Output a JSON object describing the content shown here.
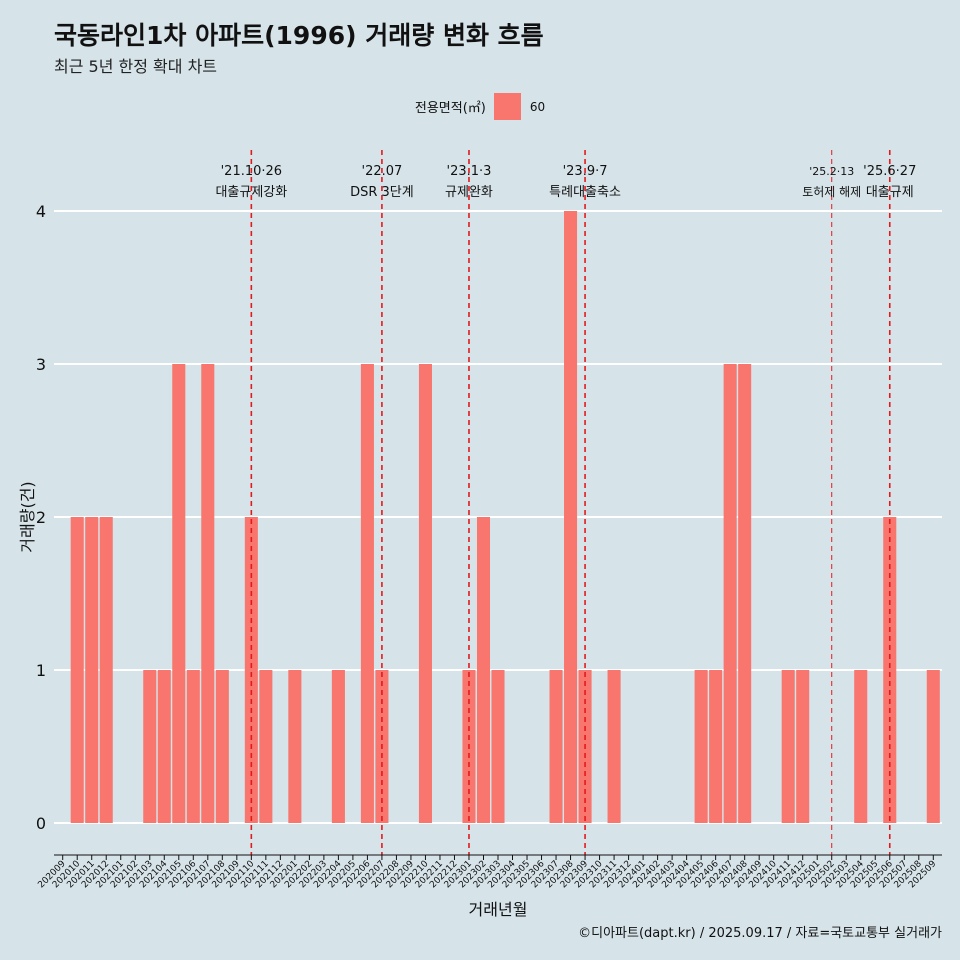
{
  "title": "국동라인1차 아파트(1996) 거래량 변화 흐름",
  "subtitle": "최근 5년 한정 확대 차트",
  "caption": "©디아파트(dapt.kr) / 2025.09.17 / 자료=국토교통부 실거래가",
  "legend": {
    "title": "전용면적(㎡)",
    "entries": [
      {
        "label": "60",
        "color": "#f8766d"
      }
    ]
  },
  "colors": {
    "background": "#d6e4ea",
    "bar": "#f8766d",
    "event_line": "#e31a1c",
    "gridline": "#ffffff"
  },
  "chart_data": {
    "type": "bar",
    "xlabel": "거래년월",
    "ylabel": "거래량(건)",
    "ylim": [
      0,
      4
    ],
    "yticks": [
      0,
      1,
      2,
      3,
      4
    ],
    "grid": true,
    "legend_position": "top",
    "categories": [
      "202009",
      "202010",
      "202011",
      "202012",
      "202101",
      "202102",
      "202103",
      "202104",
      "202105",
      "202106",
      "202107",
      "202108",
      "202109",
      "202110",
      "202111",
      "202112",
      "202201",
      "202202",
      "202203",
      "202204",
      "202205",
      "202206",
      "202207",
      "202208",
      "202209",
      "202210",
      "202211",
      "202212",
      "202301",
      "202302",
      "202303",
      "202304",
      "202305",
      "202306",
      "202307",
      "202308",
      "202309",
      "202310",
      "202311",
      "202312",
      "202401",
      "202402",
      "202403",
      "202404",
      "202405",
      "202406",
      "202407",
      "202408",
      "202409",
      "202410",
      "202411",
      "202412",
      "202501",
      "202502",
      "202503",
      "202504",
      "202505",
      "202506",
      "202507",
      "202508",
      "202509"
    ],
    "series": [
      {
        "name": "60",
        "values": [
          0,
          2,
          2,
          2,
          0,
          0,
          1,
          1,
          3,
          1,
          3,
          1,
          0,
          2,
          1,
          0,
          1,
          0,
          0,
          1,
          0,
          3,
          1,
          0,
          0,
          3,
          0,
          0,
          1,
          2,
          1,
          0,
          0,
          0,
          1,
          4,
          1,
          0,
          1,
          0,
          0,
          0,
          0,
          0,
          1,
          1,
          3,
          3,
          0,
          0,
          1,
          1,
          0,
          0,
          0,
          1,
          0,
          2,
          0,
          0,
          1
        ]
      }
    ],
    "events": [
      {
        "date": "202110",
        "label": "'21.10·26",
        "desc": "대출규제강화"
      },
      {
        "date": "202207",
        "label": "'22.07",
        "desc": "DSR 3단계"
      },
      {
        "date": "202301",
        "label": "'23.1·3",
        "desc": "규제완화"
      },
      {
        "date": "202309",
        "label": "'23.9·7",
        "desc": "특례대출축소"
      },
      {
        "date": "202502",
        "label": "'25.2·13",
        "desc": "토허제 해제"
      },
      {
        "date": "202506",
        "label": "'25.6·27",
        "desc": "대출규제"
      }
    ]
  }
}
